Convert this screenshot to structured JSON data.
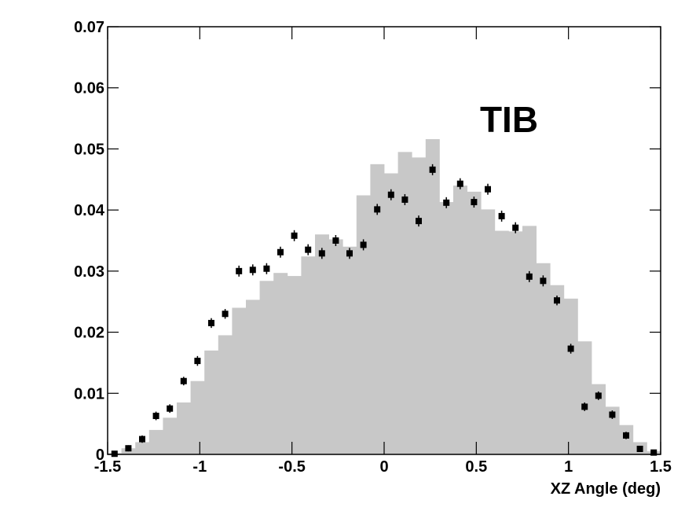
{
  "chart_data": {
    "type": "histogram",
    "annotation": "TIB",
    "x_label": "XZ Angle (deg)",
    "bins": [
      -1.5,
      -1.425,
      -1.35,
      -1.275,
      -1.2,
      -1.125,
      -1.05,
      -0.975,
      -0.9,
      -0.825,
      -0.75,
      -0.675,
      -0.6,
      -0.525,
      -0.45,
      -0.375,
      -0.3,
      -0.225,
      -0.15,
      -0.075,
      0,
      0.075,
      0.15,
      0.225,
      0.3,
      0.375,
      0.45,
      0.525,
      0.6,
      0.675,
      0.75,
      0.825,
      0.9,
      0.975,
      1.05,
      1.125,
      1.2,
      1.275,
      1.35,
      1.425,
      1.5
    ],
    "values": [
      0.0002,
      0.001,
      0.002,
      0.004,
      0.006,
      0.0085,
      0.012,
      0.017,
      0.0195,
      0.024,
      0.0253,
      0.0284,
      0.0297,
      0.0292,
      0.0324,
      0.036,
      0.0352,
      0.034,
      0.0424,
      0.0475,
      0.046,
      0.0495,
      0.0486,
      0.0516,
      0.0413,
      0.044,
      0.043,
      0.0401,
      0.0366,
      0.0365,
      0.0374,
      0.0313,
      0.0277,
      0.0255,
      0.0185,
      0.0115,
      0.0078,
      0.0048,
      0.002,
      0.0005
    ],
    "color": "#c8c8c8",
    "points": {
      "color": "#000000",
      "x": [
        -1.4625,
        -1.3875,
        -1.3125,
        -1.2375,
        -1.1625,
        -1.0875,
        -1.0125,
        -0.9375,
        -0.8625,
        -0.7875,
        -0.7125,
        -0.6375,
        -0.5625,
        -0.4875,
        -0.4125,
        -0.3375,
        -0.2625,
        -0.1875,
        -0.1125,
        -0.0375,
        0.0375,
        0.1125,
        0.1875,
        0.2625,
        0.3375,
        0.4125,
        0.4875,
        0.5625,
        0.6375,
        0.7125,
        0.7875,
        0.8625,
        0.9375,
        1.0125,
        1.0875,
        1.1625,
        1.2375,
        1.3125,
        1.3875,
        1.4625
      ],
      "values": [
        0.0001,
        0.001,
        0.0025,
        0.0063,
        0.0075,
        0.012,
        0.0153,
        0.0215,
        0.023,
        0.03,
        0.0302,
        0.0304,
        0.0331,
        0.0358,
        0.0335,
        0.0329,
        0.035,
        0.0329,
        0.0343,
        0.0401,
        0.0425,
        0.0417,
        0.0382,
        0.0466,
        0.0412,
        0.0443,
        0.0413,
        0.0434,
        0.039,
        0.0371,
        0.0291,
        0.0284,
        0.0252,
        0.0173,
        0.0078,
        0.0096,
        0.0065,
        0.0031,
        0.0009,
        0.0003
      ],
      "errors": [
        0.0003,
        0.0005,
        0.0006,
        0.0007,
        0.0007,
        0.0007,
        0.0008,
        0.0008,
        0.0008,
        0.0009,
        0.0009,
        0.0009,
        0.0009,
        0.0009,
        0.0009,
        0.0009,
        0.0009,
        0.0009,
        0.0009,
        0.0009,
        0.0009,
        0.0009,
        0.0009,
        0.0009,
        0.0009,
        0.0009,
        0.0009,
        0.0009,
        0.0009,
        0.0009,
        0.0009,
        0.0009,
        0.0008,
        0.0008,
        0.0007,
        0.0007,
        0.0007,
        0.0006,
        0.0004,
        0.0003
      ]
    },
    "xlim": [
      -1.5,
      1.5
    ],
    "xticks": [
      -1.5,
      -1,
      -0.5,
      0,
      0.5,
      1,
      1.5
    ],
    "ylim": [
      0,
      0.07
    ],
    "yticks": [
      0,
      0.01,
      0.02,
      0.03,
      0.04,
      0.05,
      0.06,
      0.07
    ]
  }
}
